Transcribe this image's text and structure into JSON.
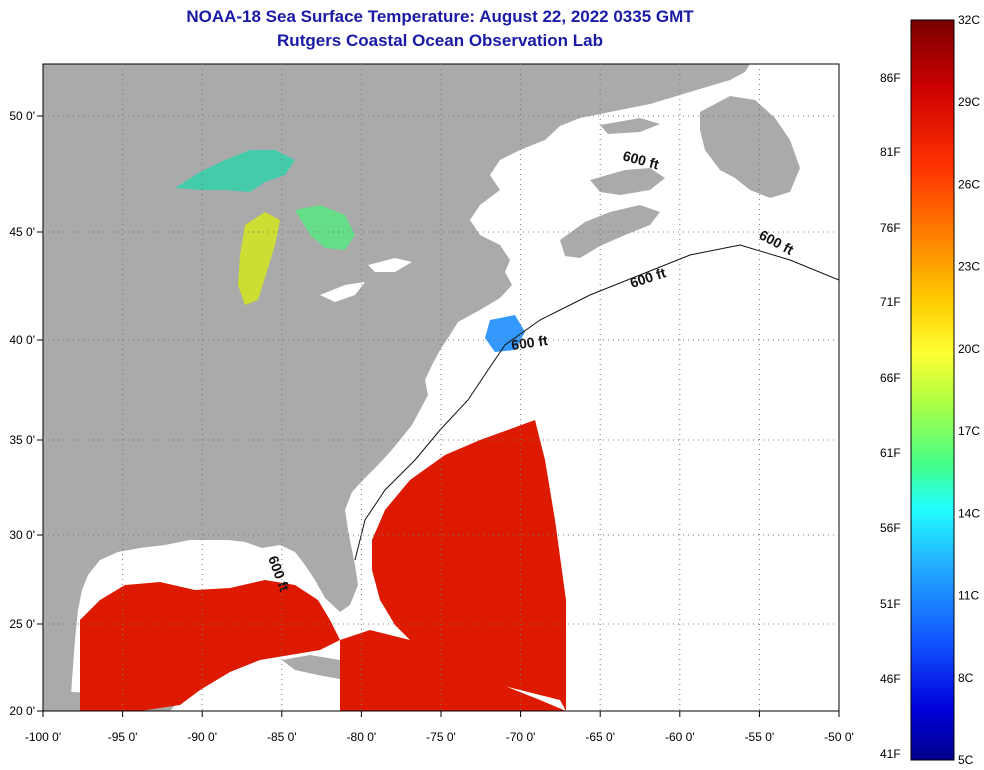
{
  "title": {
    "line1": "NOAA-18 Sea Surface Temperature:  August 22, 2022 0335 GMT",
    "line2": "Rutgers Coastal Ocean Observation Lab"
  },
  "axes": {
    "x_ticks": [
      "-100 0'",
      "-95 0'",
      "-90 0'",
      "-85 0'",
      "-80 0'",
      "-75 0'",
      "-70 0'",
      "-65 0'",
      "-60 0'",
      "-55 0'",
      "-50 0'"
    ],
    "y_ticks": [
      "50 0'",
      "45 0'",
      "40 0'",
      "35 0'",
      "30 0'",
      "25 0'",
      "20 0'"
    ]
  },
  "depth_contour_labels": [
    "600 ft",
    "600 ft",
    "600 ft",
    "600 ft",
    "600 ft"
  ],
  "colorbar": {
    "celsius_labels": [
      "32C",
      "29C",
      "26C",
      "23C",
      "20C",
      "17C",
      "14C",
      "11C",
      "8C",
      "5C"
    ],
    "fahrenheit_labels": [
      "86F",
      "81F",
      "76F",
      "71F",
      "66F",
      "61F",
      "56F",
      "51F",
      "46F",
      "41F"
    ],
    "colors": [
      "#7a0000",
      "#cc0000",
      "#ff3300",
      "#ff8800",
      "#ffcc00",
      "#ffff33",
      "#aaff44",
      "#44ff88",
      "#22ffff",
      "#22aaff",
      "#1155ff",
      "#0000dd",
      "#00008a"
    ]
  },
  "map_colors": {
    "land": "#aaaaaa",
    "no_data": "#ffffff",
    "warm_water": "#dd1a00",
    "lake_cool": "#44ccaa"
  }
}
